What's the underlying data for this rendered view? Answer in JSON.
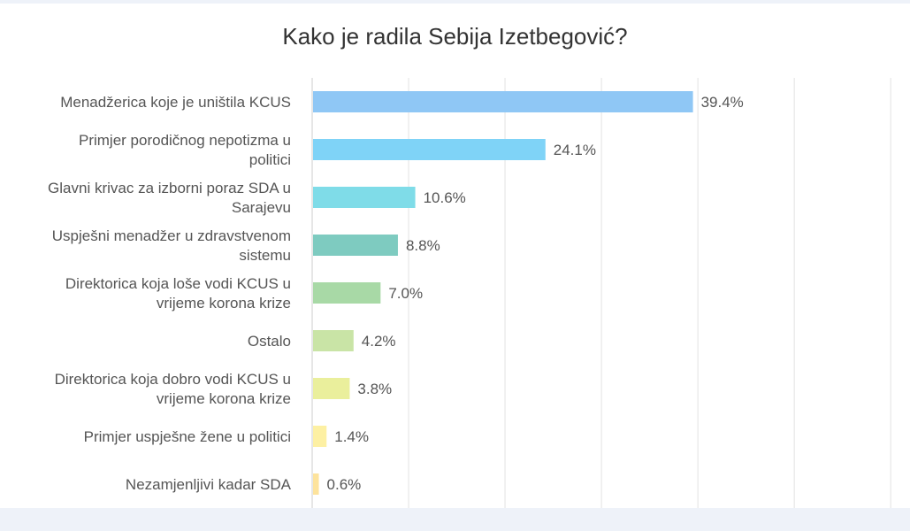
{
  "chart_data": {
    "type": "bar",
    "orientation": "horizontal",
    "title": "Kako je radila Sebija Izetbegović?",
    "xlabel": "",
    "ylabel": "",
    "xlim": [
      0,
      62
    ],
    "grid": true,
    "legend": "none",
    "categories": [
      [
        "Menadžerica koje je uništila KCUS"
      ],
      [
        "Primjer porodičnog nepotizma u",
        "politici"
      ],
      [
        "Glavni krivac za izborni poraz SDA u",
        "Sarajevu"
      ],
      [
        "Uspješni menadžer u zdravstvenom",
        "sistemu"
      ],
      [
        "Direktorica koja loše vodi KCUS u",
        "vrijeme korona krize"
      ],
      [
        "Ostalo"
      ],
      [
        "Direktorica koja dobro vodi KCUS u",
        "vrijeme korona krize"
      ],
      [
        "Primjer uspješne žene u politici"
      ],
      [
        "Nezamjenljivi kadar SDA"
      ]
    ],
    "values": [
      39.4,
      24.1,
      10.6,
      8.8,
      7.0,
      4.2,
      3.8,
      1.4,
      0.6
    ],
    "value_labels": [
      "39.4%",
      "24.1%",
      "10.6%",
      "8.8%",
      "7.0%",
      "4.2%",
      "3.8%",
      "1.4%",
      "0.6%"
    ],
    "colors": [
      "#8fc7f5",
      "#7fd3f7",
      "#7fdce8",
      "#7ecbc0",
      "#a8d9a6",
      "#c9e4a6",
      "#eaef9c",
      "#fdf0a3",
      "#fde39c"
    ]
  }
}
